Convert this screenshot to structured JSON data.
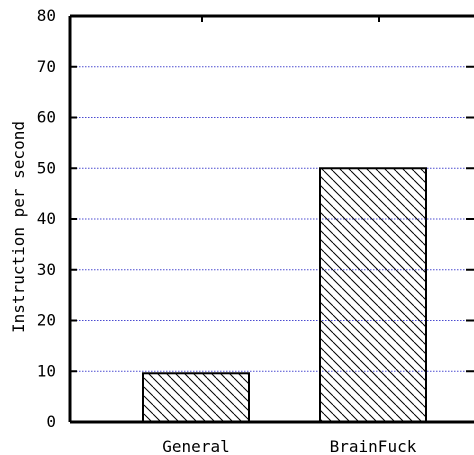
{
  "chart_data": {
    "type": "bar",
    "categories": [
      "General",
      "BrainFuck"
    ],
    "values": [
      9.6,
      50
    ],
    "ylabel": "Instruction per second",
    "xlabel": "",
    "ylim": [
      0,
      80
    ],
    "yticks": [
      0,
      10,
      20,
      30,
      40,
      50,
      60,
      70,
      80
    ],
    "grid": true,
    "bar_fill": "diagonal-hatch",
    "colors": {
      "bar_stroke": "#000000",
      "grid": "#4a4ad0",
      "axis": "#000000"
    }
  }
}
